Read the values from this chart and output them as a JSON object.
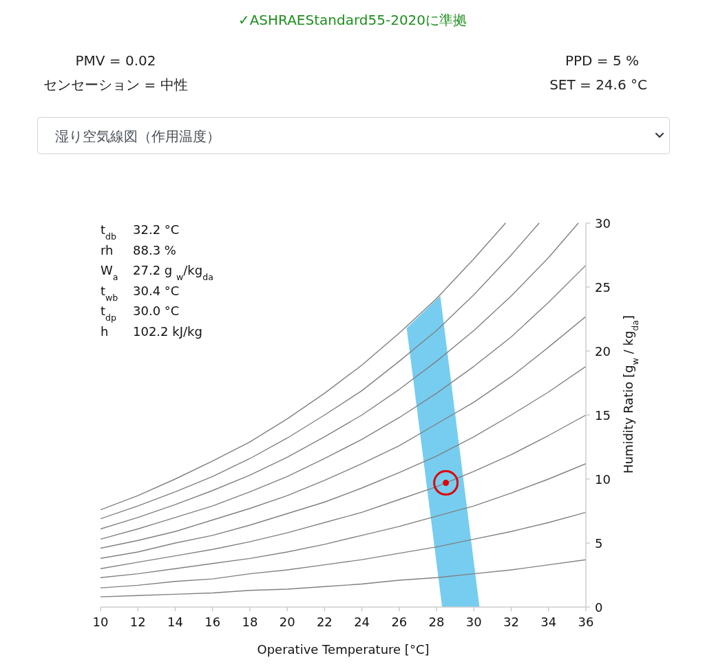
{
  "chart_data": {
    "type": "line",
    "title": "✓ASHRAEStandard55-2020に準拠",
    "subtitle": "湿り空気線図（作用温度）",
    "xlabel": "Operative Temperature [°C]",
    "ylabel": "Humidity Ratio [g$_{w}$ / kg$_{da}$]",
    "annotations": [
      "PMV = 0.02",
      "センセーション = 中性",
      "PPD = 5 %",
      "SET = 24.6 °C",
      "t$_{db}$",
      "32.2 °C",
      "rh",
      "88.3 %",
      "W$_{a}$",
      "27.2 g $_{w}$/kg$_{da}$",
      "t$_{wb}$",
      "30.4 °C",
      "t$_{dp}$",
      "30.0 °C",
      "h",
      "102.2 kJ/kg"
    ],
    "xlim": [
      10,
      36
    ],
    "ylim": [
      0,
      30
    ],
    "xticks": [
      10,
      12,
      14,
      16,
      18,
      20,
      22,
      24,
      26,
      28,
      30,
      32,
      34,
      36
    ],
    "yticks": [
      0,
      5,
      10,
      15,
      20,
      25,
      30
    ],
    "series": [
      {
        "type": "area",
        "color": "#76cdf0",
        "x": [
          28.3,
          26.4,
          28.2,
          30.3
        ],
        "values": [
          0,
          21.8,
          24.3,
          0
        ]
      },
      {
        "color": "#808080",
        "x": [
          10,
          12,
          14,
          16,
          18,
          20,
          22,
          24,
          26,
          28,
          30,
          32,
          34,
          36
        ],
        "values": [
          0.8,
          0.9,
          1.0,
          1.1,
          1.3,
          1.4,
          1.6,
          1.8,
          2.1,
          2.3,
          2.6,
          2.9,
          3.3,
          3.7
        ]
      },
      {
        "color": "#808080",
        "x": [
          10,
          12,
          14,
          16,
          18,
          20,
          22,
          24,
          26,
          28,
          30,
          32,
          34,
          36
        ],
        "values": [
          1.5,
          1.7,
          2.0,
          2.2,
          2.6,
          2.9,
          3.3,
          3.7,
          4.2,
          4.7,
          5.3,
          5.9,
          6.6,
          7.4
        ]
      },
      {
        "color": "#808080",
        "x": [
          10,
          12,
          14,
          16,
          18,
          20,
          22,
          24,
          26,
          28,
          30,
          32,
          34,
          36
        ],
        "values": [
          2.3,
          2.6,
          3.0,
          3.4,
          3.8,
          4.3,
          4.9,
          5.6,
          6.3,
          7.1,
          7.9,
          8.9,
          10.0,
          11.2
        ]
      },
      {
        "color": "#808080",
        "x": [
          10,
          12,
          14,
          16,
          18,
          20,
          22,
          24,
          26,
          28,
          30,
          32,
          34,
          36
        ],
        "values": [
          3.0,
          3.5,
          4.0,
          4.5,
          5.1,
          5.8,
          6.6,
          7.4,
          8.4,
          9.4,
          10.6,
          11.9,
          13.4,
          15.0
        ]
      },
      {
        "color": "#808080",
        "x": [
          10,
          12,
          14,
          16,
          18,
          20,
          22,
          24,
          26,
          28,
          30,
          32,
          34,
          36
        ],
        "values": [
          3.8,
          4.3,
          5.0,
          5.6,
          6.4,
          7.3,
          8.2,
          9.3,
          10.5,
          11.8,
          13.3,
          15.0,
          16.8,
          18.8
        ]
      },
      {
        "color": "#808080",
        "x": [
          10,
          12,
          14,
          16,
          18,
          20,
          22,
          24,
          26,
          28,
          30,
          32,
          34,
          36
        ],
        "values": [
          4.6,
          5.2,
          5.9,
          6.8,
          7.7,
          8.7,
          9.9,
          11.2,
          12.6,
          14.3,
          16.0,
          18.0,
          20.3,
          22.7
        ]
      },
      {
        "color": "#808080",
        "x": [
          10,
          12,
          14,
          16,
          18,
          20,
          22,
          24,
          26,
          28,
          30,
          32,
          34,
          36
        ],
        "values": [
          5.3,
          6.1,
          7.0,
          7.9,
          9.0,
          10.2,
          11.6,
          13.1,
          14.8,
          16.7,
          18.8,
          21.1,
          23.8,
          26.7
        ]
      },
      {
        "color": "#808080",
        "x": [
          10,
          12,
          14,
          16,
          18,
          20,
          22,
          24,
          26,
          28,
          30,
          32,
          34,
          35.6
        ],
        "values": [
          6.1,
          7.0,
          8.0,
          9.1,
          10.3,
          11.7,
          13.3,
          15.0,
          17.0,
          19.2,
          21.6,
          24.3,
          27.3,
          30.0
        ]
      },
      {
        "color": "#808080",
        "x": [
          10,
          12,
          14,
          16,
          18,
          20,
          22,
          24,
          26,
          28,
          30,
          32,
          33.5
        ],
        "values": [
          6.9,
          7.9,
          9.0,
          10.2,
          11.6,
          13.2,
          15.0,
          16.9,
          19.2,
          21.6,
          24.4,
          27.5,
          30.0
        ]
      },
      {
        "color": "#808080",
        "x": [
          10,
          12,
          14,
          16,
          18,
          20,
          22,
          24,
          26,
          28,
          30,
          31.7
        ],
        "values": [
          7.6,
          8.7,
          10.0,
          11.4,
          12.9,
          14.7,
          16.7,
          18.9,
          21.4,
          24.1,
          27.2,
          30.0
        ]
      },
      {
        "type": "scatter",
        "marker": "circle",
        "color": "#e00000",
        "x": [
          28.5
        ],
        "values": [
          9.7
        ]
      }
    ]
  }
}
